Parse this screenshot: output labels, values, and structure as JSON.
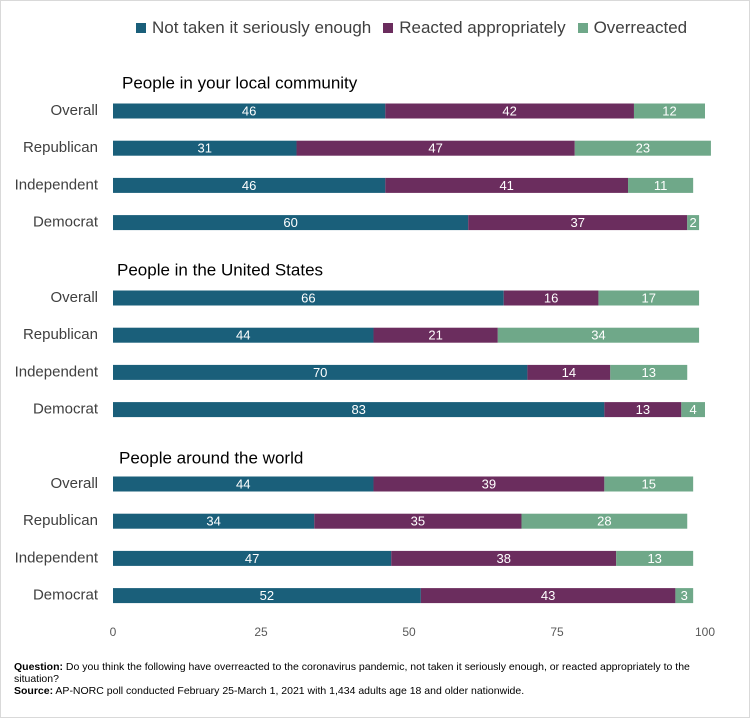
{
  "legend": [
    {
      "name": "Not taken it seriously enough",
      "color": "#1a5f7a"
    },
    {
      "name": "Reacted appropriately",
      "color": "#6b2d5e"
    },
    {
      "name": "Overreacted",
      "color": "#6fa889"
    }
  ],
  "chart_data": {
    "type": "bar",
    "orientation": "horizontal",
    "stacked": true,
    "xlim": [
      0,
      100
    ],
    "xticks": [
      0,
      25,
      50,
      75,
      100
    ],
    "grid": false,
    "legend_position": "top",
    "series_names": [
      "Not taken it seriously enough",
      "Reacted appropriately",
      "Overreacted"
    ],
    "groups": [
      {
        "title": "People in your local community",
        "rows": [
          {
            "label": "Overall",
            "values": [
              46,
              42,
              12
            ]
          },
          {
            "label": "Republican",
            "values": [
              31,
              47,
              23
            ]
          },
          {
            "label": "Independent",
            "values": [
              46,
              41,
              11
            ]
          },
          {
            "label": "Democrat",
            "values": [
              60,
              37,
              2
            ]
          }
        ]
      },
      {
        "title": "People in the United States",
        "rows": [
          {
            "label": "Overall",
            "values": [
              66,
              16,
              17
            ]
          },
          {
            "label": "Republican",
            "values": [
              44,
              21,
              34
            ]
          },
          {
            "label": "Independent",
            "values": [
              70,
              14,
              13
            ]
          },
          {
            "label": "Democrat",
            "values": [
              83,
              13,
              4
            ]
          }
        ]
      },
      {
        "title": "People around the world",
        "rows": [
          {
            "label": "Overall",
            "values": [
              44,
              39,
              15
            ]
          },
          {
            "label": "Republican",
            "values": [
              34,
              35,
              28
            ]
          },
          {
            "label": "Independent",
            "values": [
              47,
              38,
              13
            ]
          },
          {
            "label": "Democrat",
            "values": [
              52,
              43,
              3
            ]
          }
        ]
      }
    ]
  },
  "footnote": {
    "question_label": "Question:",
    "question_text": " Do you think the following have overreacted to the coronavirus pandemic, not taken it seriously enough, or reacted appropriately to the situation?",
    "source_label": "Source:",
    "source_text": "  AP-NORC poll conducted February 25-March 1, 2021 with 1,434 adults age 18 and older nationwide."
  }
}
